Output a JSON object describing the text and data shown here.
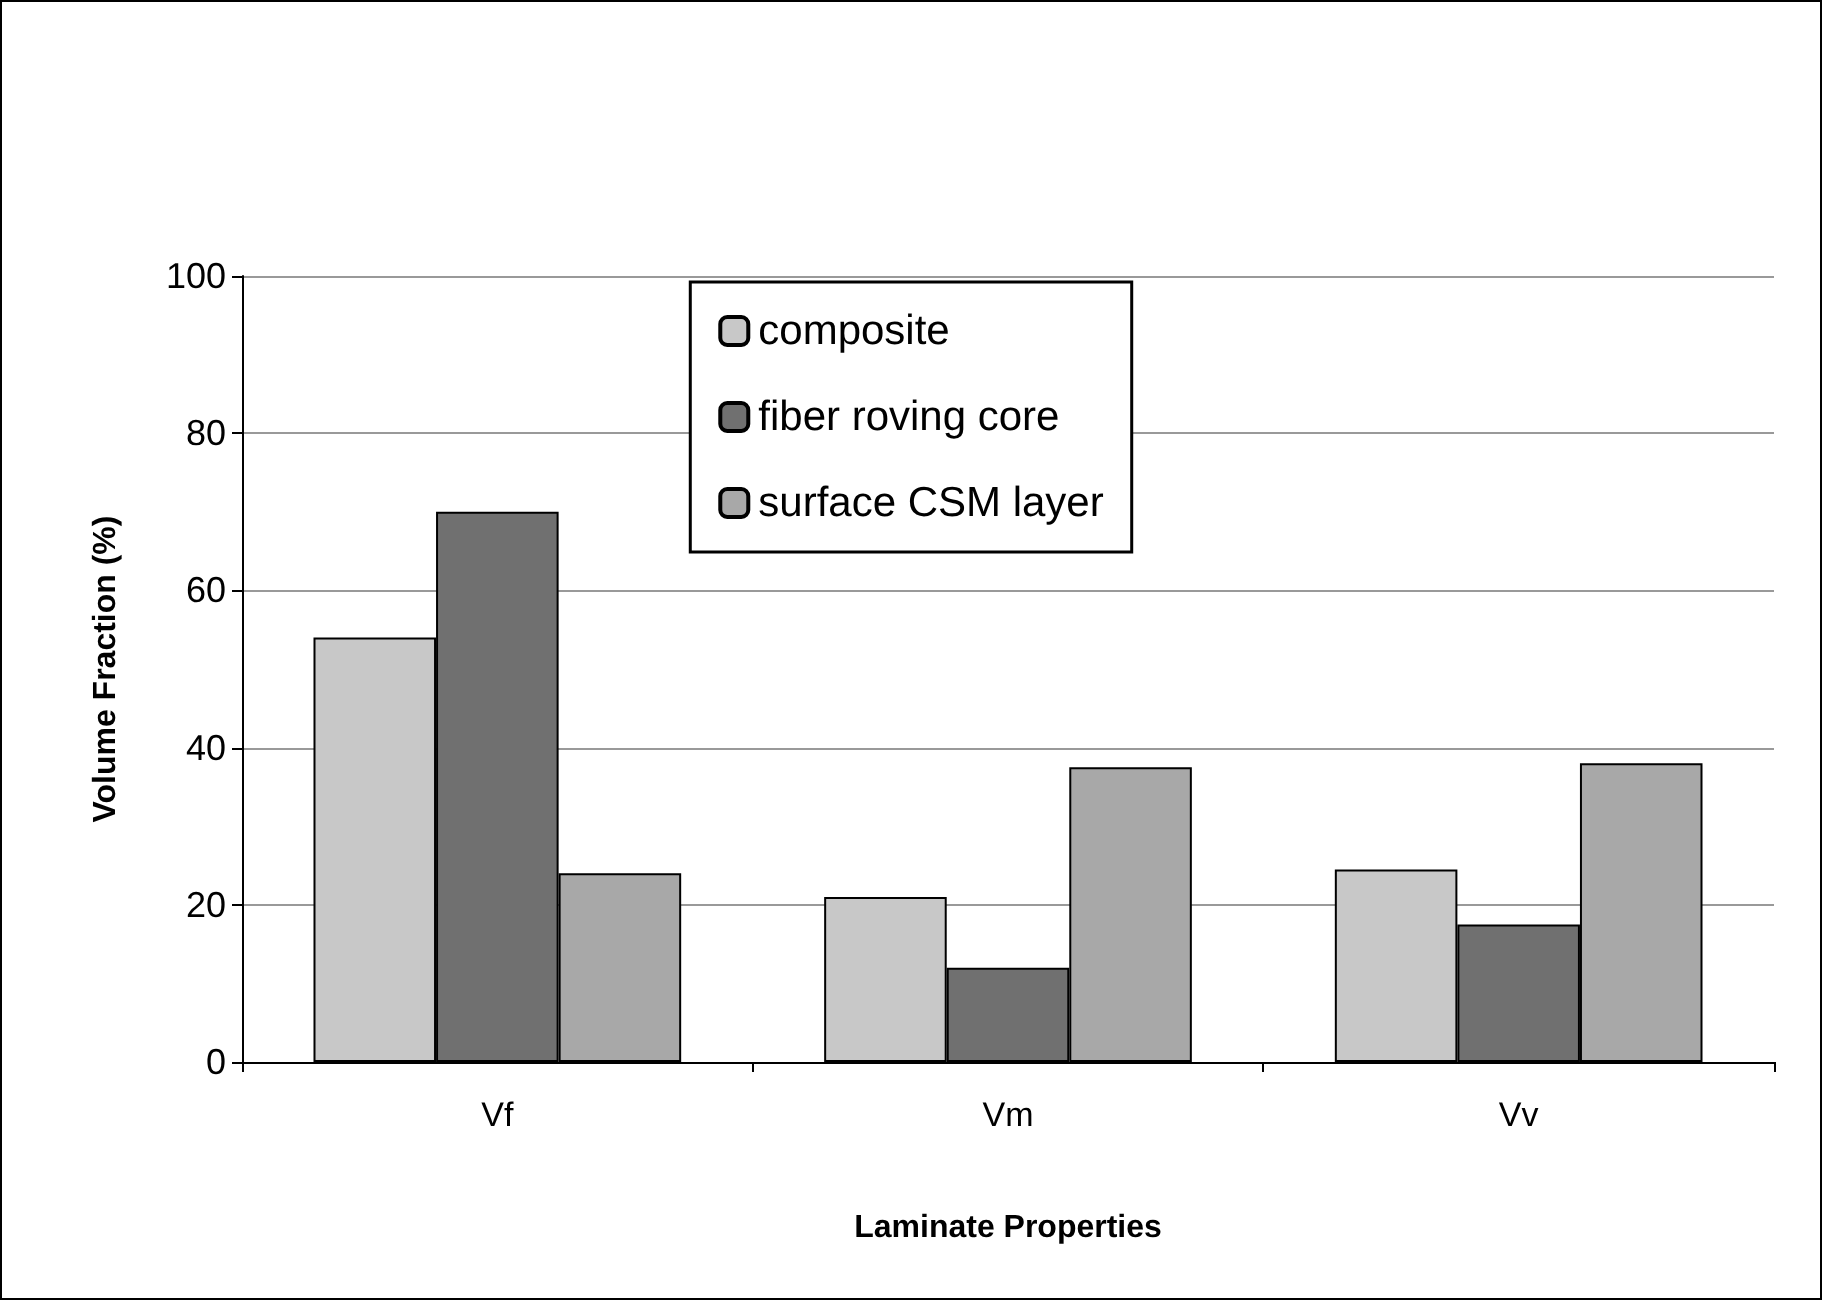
{
  "chart_data": {
    "type": "bar",
    "xlabel": "Laminate Properties",
    "ylabel": "Volume Fraction (%)",
    "categories": [
      "Vf",
      "Vm",
      "Vv"
    ],
    "series": [
      {
        "name": "composite",
        "color": "#c8c8c8",
        "values": [
          54,
          21,
          24.5
        ]
      },
      {
        "name": "fiber roving core",
        "color": "#707070",
        "values": [
          70,
          12,
          17.5
        ]
      },
      {
        "name": "surface CSM layer",
        "color": "#a8a8a8",
        "values": [
          24,
          37.5,
          38
        ]
      }
    ],
    "ylim": [
      0,
      100
    ],
    "yticks": [
      0,
      20,
      40,
      60,
      80,
      100
    ],
    "grid": "y",
    "legend": "top"
  }
}
